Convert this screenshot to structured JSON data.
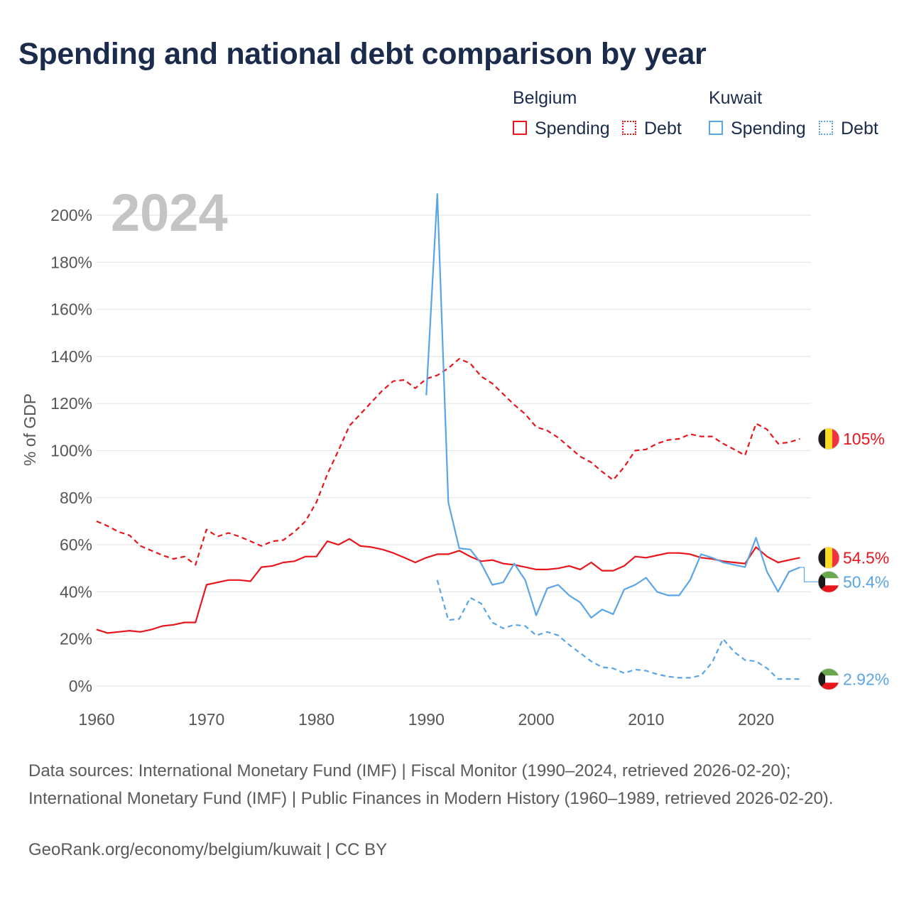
{
  "title": "Spending and national debt comparison by year",
  "legend": {
    "groups": [
      {
        "name": "Belgium",
        "color": "#e8151c",
        "items": [
          {
            "label": "Spending",
            "style": "solid"
          },
          {
            "label": "Debt",
            "style": "dotted"
          }
        ]
      },
      {
        "name": "Kuwait",
        "color": "#5aa5e6",
        "items": [
          {
            "label": "Spending",
            "style": "solid"
          },
          {
            "label": "Debt",
            "style": "dotted"
          }
        ]
      }
    ]
  },
  "chart_data": {
    "type": "line",
    "year_label": "2024",
    "ylabel": "% of GDP",
    "xlim": [
      1960,
      2025
    ],
    "ylim": [
      0,
      200
    ],
    "xticks": [
      1960,
      1970,
      1980,
      1990,
      2000,
      2010,
      2020
    ],
    "yticks": [
      0,
      20,
      40,
      60,
      80,
      100,
      120,
      140,
      160,
      180,
      200
    ],
    "ytick_labels": [
      "0%",
      "20%",
      "40%",
      "60%",
      "80%",
      "100%",
      "120%",
      "140%",
      "160%",
      "180%",
      "200%"
    ],
    "grid": true,
    "series": [
      {
        "name": "Belgium Debt",
        "country": "Belgium",
        "kind": "Debt",
        "color": "#e8151c",
        "dash": true,
        "end_label": "105%",
        "flag": "belgium",
        "x": [
          1960,
          1961,
          1962,
          1963,
          1964,
          1965,
          1966,
          1967,
          1968,
          1969,
          1970,
          1971,
          1972,
          1973,
          1974,
          1975,
          1976,
          1977,
          1978,
          1979,
          1980,
          1981,
          1982,
          1983,
          1984,
          1985,
          1986,
          1987,
          1988,
          1989,
          1990,
          1991,
          1992,
          1993,
          1994,
          1995,
          1996,
          1997,
          1998,
          1999,
          2000,
          2001,
          2002,
          2003,
          2004,
          2005,
          2006,
          2007,
          2008,
          2009,
          2010,
          2011,
          2012,
          2013,
          2014,
          2015,
          2016,
          2017,
          2018,
          2019,
          2020,
          2021,
          2022,
          2023,
          2024
        ],
        "y": [
          70,
          68,
          65.5,
          64,
          59.5,
          57.5,
          55.5,
          54,
          55,
          51.5,
          66.5,
          63.5,
          65,
          63.5,
          61.5,
          59.5,
          61.5,
          62,
          65.5,
          70,
          78,
          90,
          100,
          110.5,
          115.5,
          120.5,
          125.5,
          129.5,
          130,
          126.5,
          130.5,
          132,
          135,
          139,
          137,
          131.5,
          128.5,
          124,
          119.5,
          115.5,
          110,
          108.5,
          105.5,
          101.5,
          97.5,
          95,
          91,
          87.5,
          93,
          100,
          100.5,
          103,
          104.5,
          105,
          107,
          106,
          106,
          103,
          100.5,
          98,
          111.5,
          109,
          103,
          103.5,
          105
        ]
      },
      {
        "name": "Belgium Spending",
        "country": "Belgium",
        "kind": "Spending",
        "color": "#e8151c",
        "dash": false,
        "end_label": "54.5%",
        "flag": "belgium",
        "x": [
          1960,
          1961,
          1962,
          1963,
          1964,
          1965,
          1966,
          1967,
          1968,
          1969,
          1970,
          1971,
          1972,
          1973,
          1974,
          1975,
          1976,
          1977,
          1978,
          1979,
          1980,
          1981,
          1982,
          1983,
          1984,
          1985,
          1986,
          1987,
          1988,
          1989,
          1990,
          1991,
          1992,
          1993,
          1994,
          1995,
          1996,
          1997,
          1998,
          1999,
          2000,
          2001,
          2002,
          2003,
          2004,
          2005,
          2006,
          2007,
          2008,
          2009,
          2010,
          2011,
          2012,
          2013,
          2014,
          2015,
          2016,
          2017,
          2018,
          2019,
          2020,
          2021,
          2022,
          2023,
          2024
        ],
        "y": [
          24,
          22.5,
          23,
          23.5,
          23,
          24,
          25.5,
          26,
          27,
          27,
          43,
          44,
          45,
          45,
          44.5,
          50.5,
          51,
          52.5,
          53,
          55,
          55,
          61.5,
          60,
          62.5,
          59.5,
          59,
          58,
          56.5,
          54.5,
          52.5,
          54.5,
          56,
          56,
          57.5,
          55,
          53,
          53.5,
          52,
          51.5,
          50.5,
          49.5,
          49.5,
          50,
          51,
          49.5,
          52.5,
          49,
          49,
          51,
          55,
          54.5,
          55.5,
          56.5,
          56.5,
          56,
          54.5,
          54,
          53,
          52.5,
          52,
          59,
          55,
          52.5,
          53.5,
          54.5
        ]
      },
      {
        "name": "Kuwait Spending",
        "country": "Kuwait",
        "kind": "Spending",
        "color": "#5aa5e6",
        "dash": false,
        "end_label": "50.4%",
        "flag": "kuwait",
        "x": [
          1990,
          1991,
          1992,
          1993,
          1994,
          1995,
          1996,
          1997,
          1998,
          1999,
          2000,
          2001,
          2002,
          2003,
          2004,
          2005,
          2006,
          2007,
          2008,
          2009,
          2010,
          2011,
          2012,
          2013,
          2014,
          2015,
          2016,
          2017,
          2018,
          2019,
          2020,
          2021,
          2022,
          2023,
          2024
        ],
        "y": [
          123.5,
          209,
          78,
          58.5,
          58,
          52,
          43,
          44,
          52,
          45,
          30,
          41.5,
          43,
          38.5,
          35.5,
          29,
          32.5,
          30.5,
          41,
          43,
          46,
          40,
          38.5,
          38.5,
          45,
          56,
          54.5,
          52.5,
          51.5,
          50.5,
          63,
          48.5,
          40,
          48.5,
          50.4
        ]
      },
      {
        "name": "Kuwait Debt",
        "country": "Kuwait",
        "kind": "Debt",
        "color": "#5aa5e6",
        "dash": true,
        "end_label": "2.92%",
        "flag": "kuwait",
        "x": [
          1991,
          1992,
          1993,
          1994,
          1995,
          1996,
          1997,
          1998,
          1999,
          2000,
          2001,
          2002,
          2003,
          2004,
          2005,
          2006,
          2007,
          2008,
          2009,
          2010,
          2011,
          2012,
          2013,
          2014,
          2015,
          2016,
          2017,
          2018,
          2019,
          2020,
          2021,
          2022,
          2023,
          2024
        ],
        "y": [
          45,
          28,
          28.5,
          37.5,
          35,
          27,
          24.5,
          26,
          25.5,
          21.5,
          23,
          21.5,
          17.5,
          14,
          10.5,
          8,
          7.5,
          5.5,
          7,
          6.5,
          5,
          4,
          3.5,
          3.5,
          4.5,
          10,
          20,
          14.5,
          11,
          10.5,
          7.5,
          3,
          3,
          2.92
        ]
      }
    ]
  },
  "footer": {
    "sources": "Data sources: International Monetary Fund (IMF) | Fiscal Monitor (1990–2024, retrieved 2026-02-20); International Monetary Fund (IMF) | Public Finances in Modern History (1960–1989, retrieved 2026-02-20).",
    "link": "GeoRank.org/economy/belgium/kuwait | CC BY"
  }
}
